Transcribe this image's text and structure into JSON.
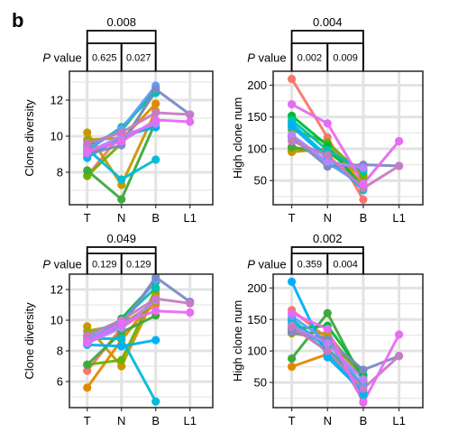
{
  "figure": {
    "panel_label": "b",
    "pvalue_label_italic": "P",
    "pvalue_label_rest": " value"
  },
  "chart_data": [
    {
      "type": "line",
      "ylabel": "Clone diversity",
      "categories": [
        "T",
        "N",
        "B",
        "L1"
      ],
      "ylim": [
        6.2,
        13.6
      ],
      "yticks": [
        8,
        10,
        12
      ],
      "grid": true,
      "pvalues": {
        "overall": "0.008",
        "t_n": "0.625",
        "n_b": "0.027"
      },
      "series": [
        {
          "color": "#F8766D",
          "values": [
            7.8,
            10.1,
            10.5,
            null
          ]
        },
        {
          "color": "#E58700",
          "values": [
            9.0,
            9.8,
            11.8,
            null
          ]
        },
        {
          "color": "#C99800",
          "values": [
            10.2,
            7.3,
            11.4,
            null
          ]
        },
        {
          "color": "#A3A500",
          "values": [
            9.8,
            9.9,
            10.6,
            null
          ]
        },
        {
          "color": "#6BB100",
          "values": [
            7.8,
            9.6,
            12.5,
            null
          ]
        },
        {
          "color": "#3DAA3D",
          "values": [
            8.1,
            6.5,
            10.8,
            null
          ]
        },
        {
          "color": "#00BA38",
          "values": [
            9.5,
            10.3,
            12.7,
            null
          ]
        },
        {
          "color": "#00C0AF",
          "values": [
            9.2,
            10.5,
            12.4,
            null
          ]
        },
        {
          "color": "#00BCD8",
          "values": [
            9.3,
            7.6,
            8.7,
            null
          ]
        },
        {
          "color": "#00B0F6",
          "values": [
            8.8,
            10.0,
            10.5,
            null
          ]
        },
        {
          "color": "#619CFF",
          "values": [
            9.3,
            10.4,
            12.8,
            null
          ]
        },
        {
          "color": "#7B8AC8",
          "values": [
            9.0,
            9.5,
            12.6,
            11.2
          ]
        },
        {
          "color": "#B983FF",
          "values": [
            9.1,
            10.0,
            10.7,
            null
          ]
        },
        {
          "color": "#C77CC2",
          "values": [
            9.6,
            10.2,
            11.3,
            11.2
          ]
        },
        {
          "color": "#E76BF3",
          "values": [
            9.2,
            9.7,
            10.9,
            10.8
          ]
        }
      ]
    },
    {
      "type": "line",
      "ylabel": "High clone num",
      "categories": [
        "T",
        "N",
        "B",
        "L1"
      ],
      "ylim": [
        12,
        222
      ],
      "yticks": [
        50,
        100,
        150,
        200
      ],
      "grid": true,
      "pvalues": {
        "overall": "0.004",
        "t_n": "0.002",
        "n_b": "0.009"
      },
      "series": [
        {
          "color": "#F8766D",
          "values": [
            210,
            118,
            20,
            null
          ]
        },
        {
          "color": "#E58700",
          "values": [
            95,
            100,
            45,
            null
          ]
        },
        {
          "color": "#C99800",
          "values": [
            97,
            98,
            60,
            null
          ]
        },
        {
          "color": "#A3A500",
          "values": [
            100,
            95,
            55,
            null
          ]
        },
        {
          "color": "#6BB100",
          "values": [
            130,
            110,
            58,
            null
          ]
        },
        {
          "color": "#3DAA3D",
          "values": [
            103,
            93,
            68,
            null
          ]
        },
        {
          "color": "#00BA38",
          "values": [
            152,
            105,
            38,
            null
          ]
        },
        {
          "color": "#00C0AF",
          "values": [
            145,
            98,
            65,
            null
          ]
        },
        {
          "color": "#00BCD8",
          "values": [
            140,
            88,
            35,
            null
          ]
        },
        {
          "color": "#00B0F6",
          "values": [
            135,
            85,
            40,
            null
          ]
        },
        {
          "color": "#619CFF",
          "values": [
            120,
            78,
            42,
            null
          ]
        },
        {
          "color": "#7B8AC8",
          "values": [
            118,
            72,
            75,
            73
          ]
        },
        {
          "color": "#B983FF",
          "values": [
            122,
            80,
            70,
            null
          ]
        },
        {
          "color": "#C77CC2",
          "values": [
            112,
            90,
            38,
            73
          ]
        },
        {
          "color": "#E76BF3",
          "values": [
            170,
            140,
            45,
            112
          ]
        }
      ]
    },
    {
      "type": "line",
      "ylabel": "Clone diversity",
      "categories": [
        "T",
        "N",
        "B",
        "L1"
      ],
      "ylim": [
        4.3,
        13.0
      ],
      "yticks": [
        6,
        8,
        10,
        12
      ],
      "grid": true,
      "pvalues": {
        "overall": "0.049",
        "t_n": "0.129",
        "n_b": "0.129"
      },
      "series": [
        {
          "color": "#F8766D",
          "values": [
            6.7,
            9.5,
            11.0,
            null
          ]
        },
        {
          "color": "#E58700",
          "values": [
            5.6,
            8.7,
            11.5,
            null
          ]
        },
        {
          "color": "#C99800",
          "values": [
            9.6,
            7.0,
            11.7,
            null
          ]
        },
        {
          "color": "#A3A500",
          "values": [
            9.3,
            9.7,
            11.2,
            null
          ]
        },
        {
          "color": "#6BB100",
          "values": [
            7.1,
            7.4,
            12.0,
            null
          ]
        },
        {
          "color": "#3DAA3D",
          "values": [
            7.1,
            9.2,
            10.3,
            null
          ]
        },
        {
          "color": "#00BA38",
          "values": [
            8.4,
            10.1,
            12.5,
            null
          ]
        },
        {
          "color": "#00C0AF",
          "values": [
            9.0,
            10.0,
            12.1,
            null
          ]
        },
        {
          "color": "#00BCD8",
          "values": [
            8.8,
            8.8,
            4.7,
            null
          ]
        },
        {
          "color": "#00B0F6",
          "values": [
            8.4,
            8.3,
            8.7,
            null
          ]
        },
        {
          "color": "#619CFF",
          "values": [
            8.8,
            9.8,
            12.6,
            null
          ]
        },
        {
          "color": "#7B8AC8",
          "values": [
            8.6,
            9.6,
            12.8,
            11.2
          ]
        },
        {
          "color": "#B983FF",
          "values": [
            8.5,
            9.5,
            11.3,
            null
          ]
        },
        {
          "color": "#C77CC2",
          "values": [
            9.0,
            10.0,
            11.4,
            11.1
          ]
        },
        {
          "color": "#E76BF3",
          "values": [
            8.6,
            9.8,
            10.6,
            10.5
          ]
        }
      ]
    },
    {
      "type": "line",
      "ylabel": "High clone num",
      "categories": [
        "T",
        "N",
        "B",
        "L1"
      ],
      "ylim": [
        10,
        222
      ],
      "yticks": [
        50,
        100,
        150,
        200
      ],
      "grid": true,
      "pvalues": {
        "overall": "0.002",
        "t_n": "0.359",
        "n_b": "0.004"
      },
      "series": [
        {
          "color": "#F8766D",
          "values": [
            165,
            120,
            20,
            null
          ]
        },
        {
          "color": "#E58700",
          "values": [
            75,
            95,
            48,
            null
          ]
        },
        {
          "color": "#C99800",
          "values": [
            130,
            128,
            55,
            null
          ]
        },
        {
          "color": "#A3A500",
          "values": [
            128,
            120,
            60,
            null
          ]
        },
        {
          "color": "#6BB100",
          "values": [
            140,
            110,
            70,
            null
          ]
        },
        {
          "color": "#3DAA3D",
          "values": [
            88,
            160,
            52,
            null
          ]
        },
        {
          "color": "#00BA38",
          "values": [
            135,
            140,
            62,
            null
          ]
        },
        {
          "color": "#00C0AF",
          "values": [
            150,
            105,
            40,
            null
          ]
        },
        {
          "color": "#00BCD8",
          "values": [
            145,
            98,
            30,
            null
          ]
        },
        {
          "color": "#00B0F6",
          "values": [
            210,
            90,
            35,
            null
          ]
        },
        {
          "color": "#619CFF",
          "values": [
            155,
            115,
            45,
            null
          ]
        },
        {
          "color": "#7B8AC8",
          "values": [
            130,
            118,
            70,
            92
          ]
        },
        {
          "color": "#B983FF",
          "values": [
            140,
            112,
            55,
            null
          ]
        },
        {
          "color": "#C77CC2",
          "values": [
            138,
            100,
            40,
            92
          ]
        },
        {
          "color": "#E76BF3",
          "values": [
            160,
            135,
            18,
            126
          ]
        }
      ]
    }
  ]
}
